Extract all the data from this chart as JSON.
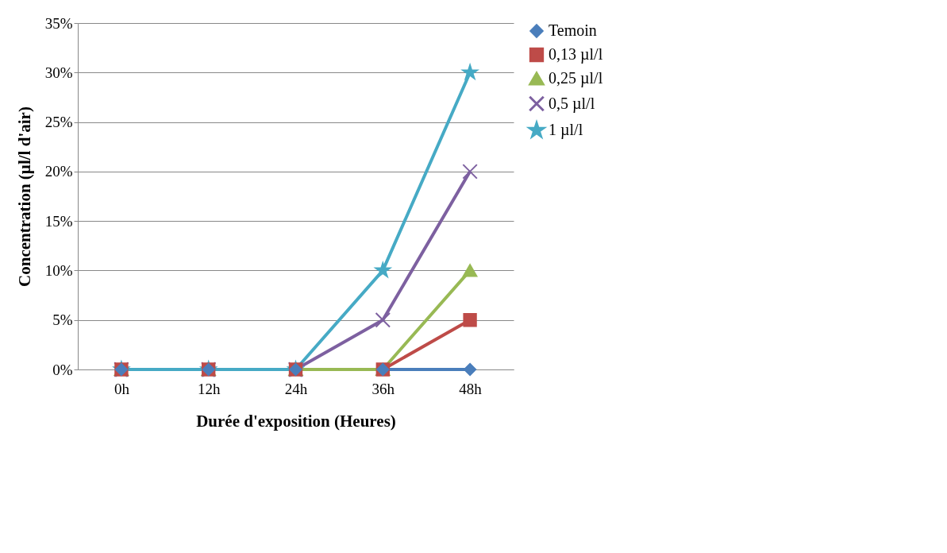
{
  "chart_data": {
    "type": "line",
    "xlabel": "Durée d'exposition (Heures)",
    "ylabel": "Concentration (µl/l d'air)",
    "categories": [
      "0h",
      "12h",
      "24h",
      "36h",
      "48h"
    ],
    "ylim": [
      0,
      35
    ],
    "yticks": [
      {
        "value": 0,
        "label": "0%"
      },
      {
        "value": 5,
        "label": "5%"
      },
      {
        "value": 10,
        "label": "10%"
      },
      {
        "value": 15,
        "label": "15%"
      },
      {
        "value": 20,
        "label": "20%"
      },
      {
        "value": 25,
        "label": "25%"
      },
      {
        "value": 30,
        "label": "30%"
      },
      {
        "value": 35,
        "label": "35%"
      }
    ],
    "grid": "y",
    "legend": "right",
    "series": [
      {
        "name": "Temoin",
        "color": "#4a7ebb",
        "marker": "diamond",
        "values": [
          0,
          0,
          0,
          0,
          0
        ]
      },
      {
        "name": "0,13 µl/l",
        "color": "#be4b48",
        "marker": "square",
        "values": [
          0,
          0,
          0,
          0,
          5
        ]
      },
      {
        "name": "0,25 µl/l",
        "color": "#98b954",
        "marker": "triangle",
        "values": [
          0,
          0,
          0,
          0,
          10
        ]
      },
      {
        "name": "0,5 µl/l",
        "color": "#7d60a0",
        "marker": "cross",
        "values": [
          0,
          0,
          0,
          5,
          20
        ]
      },
      {
        "name": "1 µl/l",
        "color": "#46aac5",
        "marker": "star",
        "values": [
          0,
          0,
          0,
          10,
          30
        ]
      }
    ]
  }
}
